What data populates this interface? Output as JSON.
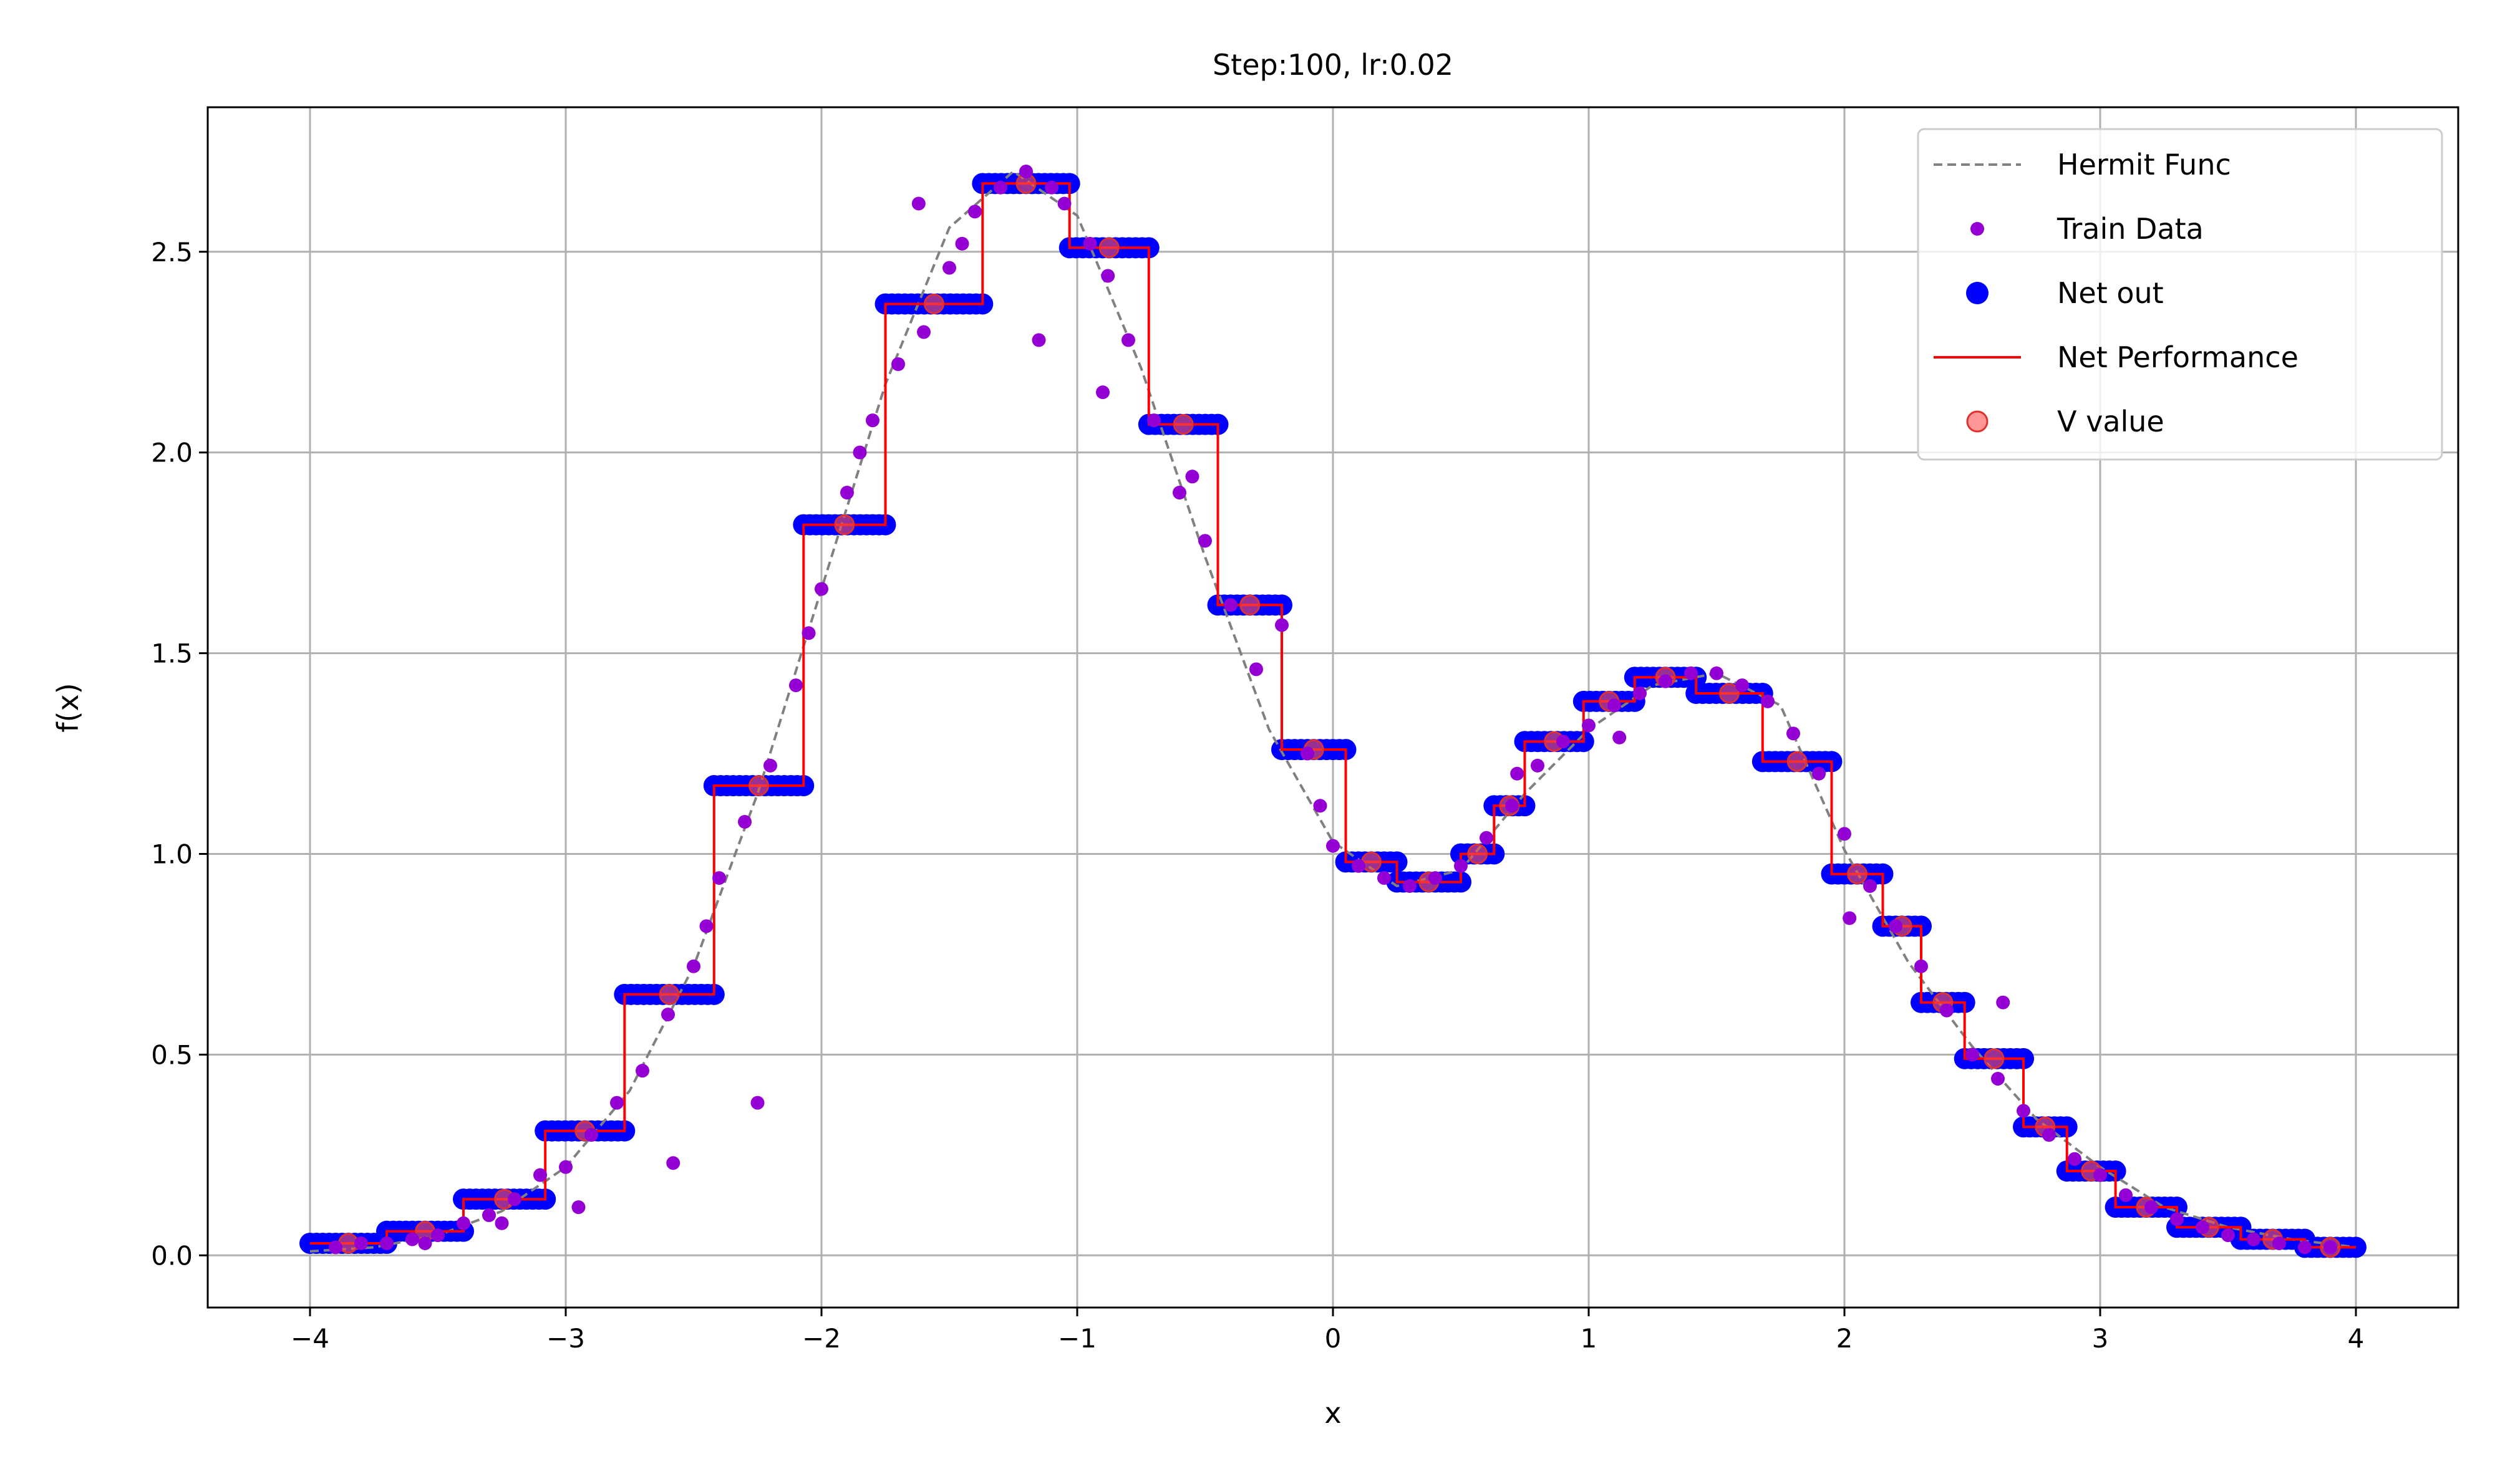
{
  "chart_data": {
    "type": "scatter",
    "title": "Step:100, lr:0.02",
    "xlabel": "x",
    "ylabel": "f(x)",
    "xlim": [
      -4.4,
      4.4
    ],
    "ylim": [
      -0.13,
      2.86
    ],
    "xticks": [
      -4,
      -3,
      -2,
      -1,
      0,
      1,
      2,
      3,
      4
    ],
    "xtick_labels": [
      "−4",
      "−3",
      "−2",
      "−1",
      "0",
      "1",
      "2",
      "3",
      "4"
    ],
    "yticks": [
      0.0,
      0.5,
      1.0,
      1.5,
      2.0,
      2.5
    ],
    "ytick_labels": [
      "0.0",
      "0.5",
      "1.0",
      "1.5",
      "2.0",
      "2.5"
    ],
    "grid": true,
    "legend_position": "top-right",
    "colors": {
      "hermit": "#808080",
      "train": "#9400D3",
      "net_out": "#0000FF",
      "net_perf": "#FF0000",
      "v_value": "#FF5050"
    },
    "series": [
      {
        "name": "Hermit Func",
        "style": "dashed-line",
        "x": [
          -4.0,
          -3.75,
          -3.5,
          -3.25,
          -3.0,
          -2.75,
          -2.5,
          -2.25,
          -2.0,
          -1.75,
          -1.5,
          -1.25,
          -1.0,
          -0.75,
          -0.5,
          -0.25,
          0.0,
          0.25,
          0.5,
          0.75,
          1.0,
          1.25,
          1.5,
          1.75,
          2.0,
          2.25,
          2.5,
          2.75,
          3.0,
          3.25,
          3.5,
          3.75,
          4.0
        ],
        "y": [
          0.01,
          0.02,
          0.05,
          0.11,
          0.22,
          0.41,
          0.72,
          1.15,
          1.66,
          2.17,
          2.56,
          2.7,
          2.59,
          2.21,
          1.74,
          1.31,
          1.03,
          0.92,
          0.96,
          1.15,
          1.31,
          1.42,
          1.45,
          1.37,
          1.01,
          0.73,
          0.52,
          0.34,
          0.22,
          0.12,
          0.07,
          0.04,
          0.02
        ]
      },
      {
        "name": "Train Data",
        "style": "scatter-small",
        "x": [
          -3.9,
          -3.8,
          -3.7,
          -3.6,
          -3.55,
          -3.5,
          -3.4,
          -3.3,
          -3.25,
          -3.2,
          -3.1,
          -3.0,
          -2.95,
          -2.9,
          -2.8,
          -2.7,
          -2.6,
          -2.58,
          -2.5,
          -2.45,
          -2.4,
          -2.3,
          -2.25,
          -2.2,
          -2.1,
          -2.05,
          -2.0,
          -1.9,
          -1.85,
          -1.8,
          -1.7,
          -1.62,
          -1.6,
          -1.5,
          -1.45,
          -1.4,
          -1.3,
          -1.2,
          -1.15,
          -1.1,
          -1.05,
          -0.95,
          -0.9,
          -0.88,
          -0.8,
          -0.7,
          -0.6,
          -0.55,
          -0.5,
          -0.4,
          -0.3,
          -0.2,
          -0.1,
          -0.05,
          0.0,
          0.1,
          0.2,
          0.3,
          0.4,
          0.5,
          0.6,
          0.7,
          0.72,
          0.8,
          0.9,
          1.0,
          1.1,
          1.12,
          1.2,
          1.3,
          1.4,
          1.5,
          1.6,
          1.7,
          1.8,
          1.9,
          2.0,
          2.02,
          2.1,
          2.2,
          2.3,
          2.4,
          2.5,
          2.62,
          2.6,
          2.7,
          2.8,
          2.9,
          3.0,
          3.1,
          3.2,
          3.3,
          3.4,
          3.5,
          3.6,
          3.7,
          3.8,
          3.9
        ],
        "y": [
          0.02,
          0.03,
          0.03,
          0.04,
          0.03,
          0.05,
          0.08,
          0.1,
          0.08,
          0.14,
          0.2,
          0.22,
          0.12,
          0.3,
          0.38,
          0.46,
          0.6,
          0.23,
          0.72,
          0.82,
          0.94,
          1.08,
          0.38,
          1.22,
          1.42,
          1.55,
          1.66,
          1.9,
          2.0,
          2.08,
          2.22,
          2.62,
          2.3,
          2.46,
          2.52,
          2.6,
          2.66,
          2.7,
          2.28,
          2.66,
          2.62,
          2.52,
          2.15,
          2.44,
          2.28,
          2.08,
          1.9,
          1.94,
          1.78,
          1.62,
          1.46,
          1.57,
          1.25,
          1.12,
          1.02,
          0.97,
          0.94,
          0.92,
          0.94,
          0.97,
          1.04,
          1.12,
          1.2,
          1.22,
          1.28,
          1.32,
          1.37,
          1.29,
          1.4,
          1.43,
          1.45,
          1.45,
          1.42,
          1.38,
          1.3,
          1.2,
          1.05,
          0.84,
          0.92,
          0.82,
          0.72,
          0.61,
          0.5,
          0.63,
          0.44,
          0.36,
          0.3,
          0.24,
          0.2,
          0.15,
          0.12,
          0.09,
          0.07,
          0.05,
          0.04,
          0.03,
          0.02,
          0.02
        ]
      },
      {
        "name": "Net out",
        "style": "scatter-large",
        "steps": [
          {
            "x0": -4.0,
            "x1": -3.7,
            "y": 0.03
          },
          {
            "x0": -3.7,
            "x1": -3.4,
            "y": 0.06
          },
          {
            "x0": -3.4,
            "x1": -3.08,
            "y": 0.14
          },
          {
            "x0": -3.08,
            "x1": -2.77,
            "y": 0.31
          },
          {
            "x0": -2.77,
            "x1": -2.42,
            "y": 0.65
          },
          {
            "x0": -2.42,
            "x1": -2.07,
            "y": 1.17
          },
          {
            "x0": -2.07,
            "x1": -1.75,
            "y": 1.82
          },
          {
            "x0": -1.75,
            "x1": -1.37,
            "y": 2.37
          },
          {
            "x0": -1.37,
            "x1": -1.03,
            "y": 2.67
          },
          {
            "x0": -1.03,
            "x1": -0.72,
            "y": 2.51
          },
          {
            "x0": -0.72,
            "x1": -0.45,
            "y": 2.07
          },
          {
            "x0": -0.45,
            "x1": -0.2,
            "y": 1.62
          },
          {
            "x0": -0.2,
            "x1": 0.05,
            "y": 1.26
          },
          {
            "x0": 0.05,
            "x1": 0.25,
            "y": 0.98
          },
          {
            "x0": 0.25,
            "x1": 0.5,
            "y": 0.93
          },
          {
            "x0": 0.5,
            "x1": 0.63,
            "y": 1.0
          },
          {
            "x0": 0.63,
            "x1": 0.75,
            "y": 1.12
          },
          {
            "x0": 0.75,
            "x1": 0.98,
            "y": 1.28
          },
          {
            "x0": 0.98,
            "x1": 1.18,
            "y": 1.38
          },
          {
            "x0": 1.18,
            "x1": 1.42,
            "y": 1.44
          },
          {
            "x0": 1.42,
            "x1": 1.68,
            "y": 1.4
          },
          {
            "x0": 1.68,
            "x1": 1.95,
            "y": 1.23
          },
          {
            "x0": 1.95,
            "x1": 2.15,
            "y": 0.95
          },
          {
            "x0": 2.15,
            "x1": 2.3,
            "y": 0.82
          },
          {
            "x0": 2.3,
            "x1": 2.47,
            "y": 0.63
          },
          {
            "x0": 2.47,
            "x1": 2.7,
            "y": 0.49
          },
          {
            "x0": 2.7,
            "x1": 2.87,
            "y": 0.32
          },
          {
            "x0": 2.87,
            "x1": 3.06,
            "y": 0.21
          },
          {
            "x0": 3.06,
            "x1": 3.3,
            "y": 0.12
          },
          {
            "x0": 3.3,
            "x1": 3.55,
            "y": 0.07
          },
          {
            "x0": 3.55,
            "x1": 3.8,
            "y": 0.04
          },
          {
            "x0": 3.8,
            "x1": 4.0,
            "y": 0.02
          }
        ]
      },
      {
        "name": "Net Performance",
        "style": "step-line"
      },
      {
        "name": "V value",
        "style": "scatter-medium-translucent"
      }
    ]
  }
}
